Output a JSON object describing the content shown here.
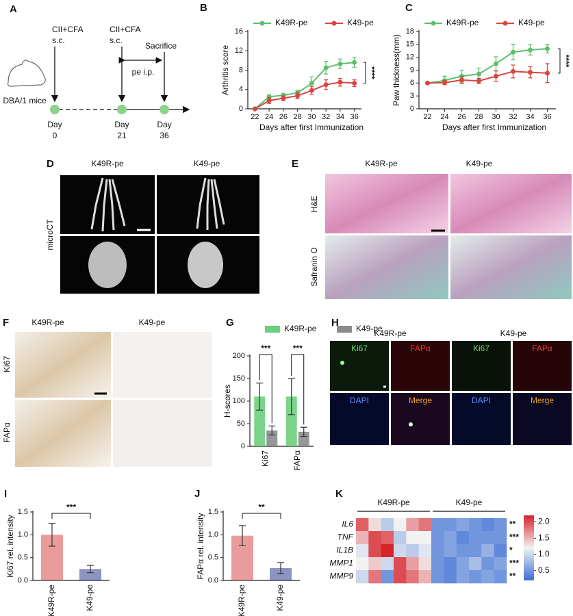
{
  "panel_letters": [
    "A",
    "B",
    "C",
    "D",
    "E",
    "F",
    "G",
    "H",
    "I",
    "J",
    "K"
  ],
  "schematic": {
    "mouse": "DBA/1 mice",
    "injections": [
      {
        "agent": "CII+CFA",
        "route": "s.c."
      },
      {
        "agent": "CII+CFA",
        "route": "s.c."
      }
    ],
    "sacrifice": "Sacrifice",
    "treatment": "pe i.p.",
    "days": [
      {
        "label": "Day",
        "value": 0
      },
      {
        "label": "Day",
        "value": 21
      },
      {
        "label": "Day",
        "value": 36
      }
    ]
  },
  "image_panels": {
    "D": {
      "columns": [
        "K49R-pe",
        "K49-pe"
      ],
      "row_label": "microCT"
    },
    "E": {
      "columns": [
        "K49R-pe",
        "K49-pe"
      ],
      "rows": [
        "H&E",
        "Safranin O"
      ]
    },
    "F": {
      "columns": [
        "K49R-pe",
        "K49-pe"
      ],
      "rows": [
        "Ki67",
        "FAPα"
      ]
    },
    "H": {
      "columns": [
        "K49R-pe",
        "K49-pe"
      ],
      "channels": [
        [
          "Ki67",
          "FAPα",
          "Ki67",
          "FAPα"
        ],
        [
          "DAPI",
          "Merge",
          "DAPI",
          "Merge"
        ]
      ]
    }
  },
  "chart_data": [
    {
      "type": "line",
      "y_label": "Arthritis score",
      "x_label": "Days after first Immunization",
      "x": [
        22,
        24,
        26,
        28,
        30,
        32,
        34,
        36
      ],
      "xlim": [
        21,
        37
      ],
      "xticks": [
        22,
        24,
        26,
        28,
        30,
        32,
        34,
        36
      ],
      "ylim": [
        0,
        16
      ],
      "yticks": [
        0,
        4,
        8,
        12,
        16
      ],
      "series": [
        {
          "name": "K49R-pe",
          "color": "#5cbf6e",
          "values": [
            0,
            2.5,
            2.8,
            3.3,
            5.3,
            8.5,
            9.3,
            9.6
          ],
          "errors": [
            0,
            0.4,
            0.4,
            0.5,
            1.3,
            1.3,
            1.0,
            1.0
          ]
        },
        {
          "name": "K49-pe",
          "color": "#d9453f",
          "values": [
            0,
            1.7,
            2.2,
            2.7,
            3.8,
            5.0,
            5.5,
            5.3
          ],
          "errors": [
            0,
            0.6,
            0.5,
            0.6,
            0.8,
            1.0,
            0.8,
            0.7
          ]
        }
      ],
      "annotation": "****"
    },
    {
      "type": "line",
      "y_label": "Paw thickness(mm)",
      "x_label": "Days after first Immunization",
      "x": [
        22,
        24,
        26,
        28,
        30,
        32,
        34,
        36
      ],
      "xlim": [
        21,
        37
      ],
      "xticks": [
        22,
        24,
        26,
        28,
        30,
        32,
        34,
        36
      ],
      "ylim": [
        0,
        18
      ],
      "yticks": [
        0,
        3,
        6,
        9,
        12,
        15,
        18
      ],
      "series": [
        {
          "name": "K49R-pe",
          "color": "#5cbf6e",
          "values": [
            6,
            6.6,
            7.6,
            8.1,
            10.5,
            13.2,
            13.7,
            14
          ],
          "errors": [
            0,
            1.0,
            1.4,
            1.4,
            1.6,
            1.8,
            1.2,
            1.0
          ]
        },
        {
          "name": "K49-pe",
          "color": "#d9453f",
          "values": [
            6,
            6.1,
            6.7,
            6.5,
            7.6,
            8.7,
            8.5,
            8.3
          ],
          "errors": [
            0,
            0.5,
            0.8,
            0.6,
            1.2,
            1.5,
            1.3,
            2.2
          ]
        }
      ],
      "annotation": "****"
    },
    {
      "type": "bar",
      "y_label": "H-scores",
      "categories": [
        "Ki67",
        "FAPα"
      ],
      "ylim": [
        0,
        200
      ],
      "yticks": [
        0,
        50,
        100,
        150,
        200
      ],
      "series": [
        {
          "name": "K49R-pe",
          "color": "#6dcf7d",
          "values": [
            110,
            110
          ],
          "errors": [
            30,
            40
          ]
        },
        {
          "name": "K49-pe",
          "color": "#8c8c8c",
          "values": [
            35,
            32
          ],
          "errors": [
            10,
            10
          ]
        }
      ],
      "annotations": [
        "***",
        "***"
      ]
    },
    {
      "type": "bar",
      "y_label": "Ki67 rel. intensity",
      "categories": [
        "K49R-pe",
        "K49-pe"
      ],
      "values": [
        1.0,
        0.25
      ],
      "errors": [
        0.25,
        0.08
      ],
      "colors": [
        "#d94b4b",
        "#2d3d8e"
      ],
      "ylim": [
        0,
        1.5
      ],
      "yticks": [
        {
          "value": 0,
          "label": "0.0"
        },
        0.5,
        {
          "value": 1,
          "label": "1.0"
        },
        1.5
      ],
      "annotation": "***"
    },
    {
      "type": "bar",
      "y_label": "FAPα rel. intensity",
      "categories": [
        "K49R-pe",
        "K49-pe"
      ],
      "values": [
        0.98,
        0.27
      ],
      "errors": [
        0.22,
        0.12
      ],
      "colors": [
        "#d94b4b",
        "#2d3d8e"
      ],
      "ylim": [
        0,
        1.5
      ],
      "yticks": [
        {
          "value": 0,
          "label": "0.0"
        },
        0.5,
        {
          "value": 1,
          "label": "1.0"
        },
        1.5
      ],
      "annotation": "**"
    },
    {
      "type": "heatmap",
      "rows": [
        "IL6",
        "TNF",
        "IL1B",
        "MMP1",
        "MMP9"
      ],
      "groups": [
        "K49R-pe",
        "K49-pe"
      ],
      "values": [
        [
          1.9,
          1.3,
          0.9,
          1.2,
          1.6,
          1.8,
          0.5,
          0.5,
          0.6,
          0.5,
          0.4,
          0.5
        ],
        [
          1.5,
          2.0,
          1.9,
          0.9,
          1.2,
          1.2,
          0.5,
          0.6,
          0.4,
          0.5,
          0.5,
          0.5
        ],
        [
          1.1,
          2.0,
          2.2,
          1.0,
          0.9,
          1.1,
          0.5,
          0.6,
          0.5,
          0.5,
          0.7,
          0.4
        ],
        [
          1.2,
          1.4,
          1.0,
          2.0,
          1.6,
          1.3,
          0.5,
          0.4,
          0.6,
          0.8,
          0.5,
          0.6
        ],
        [
          1.0,
          1.8,
          0.5,
          2.0,
          1.8,
          1.5,
          0.5,
          0.4,
          0.6,
          0.5,
          0.6,
          0.5
        ]
      ],
      "row_annotations": [
        "**",
        "***",
        "*",
        "***",
        "**"
      ],
      "clim": [
        0.2,
        2.2
      ],
      "colorbar_ticks": [
        0.5,
        {
          "value": 1,
          "label": "1.0"
        },
        1.5,
        {
          "value": 2,
          "label": "2.0"
        }
      ],
      "colormap": [
        "#3b6fd6",
        "#f2f2f2",
        "#d8232a"
      ]
    }
  ]
}
